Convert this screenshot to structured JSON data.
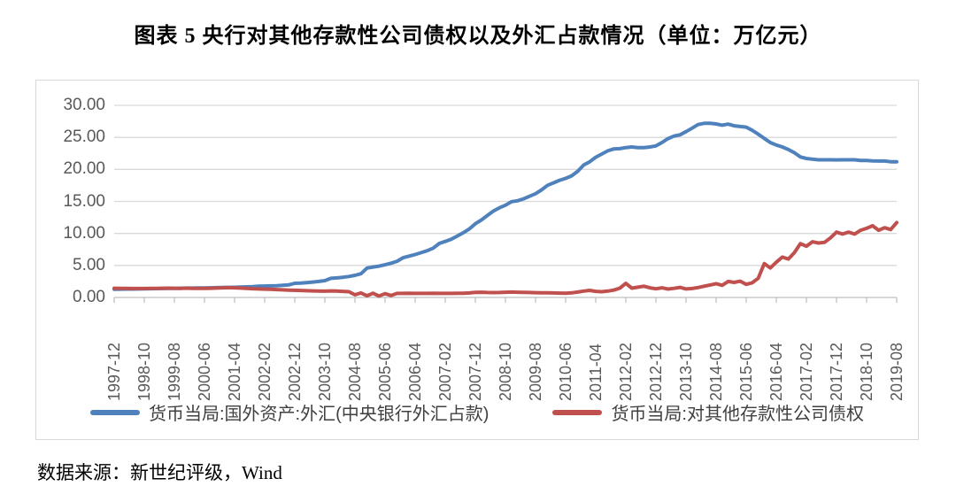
{
  "title": "图表 5  央行对其他存款性公司债权以及外汇占款情况（单位：万亿元）",
  "source": "数据来源：新世纪评级，Wind",
  "colors": {
    "series_fx_blue": "#4F81BD",
    "series_claims_red": "#C0504D",
    "gridline": "#d9d9d9",
    "axis": "#bfbfbf",
    "tick_label": "#595959",
    "legend_text": "#404040",
    "border": "#d9d9d9"
  },
  "chart_data": {
    "type": "line",
    "title": "央行对其他存款性公司债权以及外汇占款情况",
    "unit": "万亿元",
    "grid": true,
    "legend_position": "bottom",
    "ylim": [
      0,
      30
    ],
    "y_ticks": [
      "0.00",
      "5.00",
      "10.00",
      "15.00",
      "20.00",
      "25.00",
      "30.00"
    ],
    "x_start": "1997-12",
    "x_end": "2019-08",
    "x_total_months": 260,
    "x_tick_interval_months": 10,
    "x_ticks": [
      "1997-12",
      "1998-10",
      "1999-08",
      "2000-06",
      "2001-04",
      "2002-02",
      "2002-12",
      "2003-10",
      "2004-08",
      "2005-06",
      "2006-04",
      "2007-02",
      "2007-12",
      "2008-10",
      "2009-08",
      "2010-06",
      "2011-04",
      "2012-02",
      "2012-12",
      "2013-10",
      "2014-08",
      "2015-06",
      "2016-04",
      "2017-02",
      "2017-12",
      "2018-10",
      "2019-08"
    ],
    "sample_interval_months": 2,
    "series": [
      {
        "name": "货币当局:国外资产:外汇(中央银行外汇占款)",
        "color": "#4F81BD",
        "values": [
          1.28,
          1.3,
          1.31,
          1.32,
          1.33,
          1.35,
          1.37,
          1.38,
          1.39,
          1.41,
          1.42,
          1.44,
          1.46,
          1.47,
          1.48,
          1.49,
          1.51,
          1.53,
          1.56,
          1.57,
          1.59,
          1.62,
          1.66,
          1.7,
          1.77,
          1.79,
          1.81,
          1.84,
          1.89,
          1.96,
          2.21,
          2.25,
          2.32,
          2.4,
          2.5,
          2.62,
          2.98,
          3.05,
          3.15,
          3.28,
          3.45,
          3.7,
          4.59,
          4.75,
          4.9,
          5.1,
          5.35,
          5.65,
          6.21,
          6.45,
          6.7,
          7.0,
          7.3,
          7.7,
          8.44,
          8.75,
          9.1,
          9.6,
          10.1,
          10.7,
          11.52,
          12.1,
          12.8,
          13.5,
          14.0,
          14.4,
          14.96,
          15.1,
          15.4,
          15.8,
          16.2,
          16.8,
          17.52,
          17.9,
          18.3,
          18.6,
          19.0,
          19.7,
          20.68,
          21.2,
          21.9,
          22.4,
          22.9,
          23.2,
          23.24,
          23.4,
          23.5,
          23.4,
          23.4,
          23.5,
          23.67,
          24.2,
          24.8,
          25.2,
          25.4,
          25.9,
          26.43,
          27.0,
          27.2,
          27.2,
          27.1,
          26.9,
          27.07,
          26.8,
          26.7,
          26.6,
          26.1,
          25.5,
          24.85,
          24.2,
          23.8,
          23.5,
          23.1,
          22.6,
          21.94,
          21.7,
          21.6,
          21.5,
          21.5,
          21.5,
          21.48,
          21.5,
          21.5,
          21.5,
          21.4,
          21.4,
          21.33,
          21.3,
          21.3,
          21.2,
          21.2
        ]
      },
      {
        "name": "货币当局:对其他存款性公司债权",
        "color": "#C0504D",
        "values": [
          1.44,
          1.43,
          1.41,
          1.4,
          1.39,
          1.4,
          1.42,
          1.43,
          1.44,
          1.45,
          1.44,
          1.43,
          1.45,
          1.42,
          1.41,
          1.42,
          1.44,
          1.47,
          1.5,
          1.54,
          1.5,
          1.46,
          1.41,
          1.37,
          1.33,
          1.3,
          1.27,
          1.23,
          1.19,
          1.15,
          1.12,
          1.09,
          1.05,
          1.02,
          1.0,
          0.98,
          1.02,
          0.99,
          0.96,
          0.9,
          0.42,
          0.7,
          0.26,
          0.66,
          0.22,
          0.6,
          0.3,
          0.64,
          0.63,
          0.65,
          0.64,
          0.63,
          0.64,
          0.65,
          0.64,
          0.64,
          0.63,
          0.65,
          0.67,
          0.7,
          0.79,
          0.81,
          0.78,
          0.76,
          0.78,
          0.81,
          0.84,
          0.82,
          0.79,
          0.77,
          0.75,
          0.73,
          0.72,
          0.7,
          0.68,
          0.67,
          0.72,
          0.85,
          1.0,
          1.1,
          0.95,
          0.9,
          1.0,
          1.15,
          1.45,
          2.2,
          1.45,
          1.6,
          1.75,
          1.5,
          1.35,
          1.5,
          1.32,
          1.42,
          1.57,
          1.33,
          1.4,
          1.55,
          1.75,
          1.95,
          2.15,
          1.9,
          2.5,
          2.35,
          2.55,
          2.05,
          2.3,
          3.0,
          5.3,
          4.6,
          5.5,
          6.3,
          6.0,
          7.0,
          8.4,
          8.0,
          8.7,
          8.5,
          8.6,
          9.3,
          10.2,
          9.9,
          10.2,
          9.9,
          10.5,
          10.8,
          11.2,
          10.5,
          10.9,
          10.6,
          11.7
        ]
      }
    ]
  },
  "legend": [
    {
      "label": "货币当局:国外资产:外汇(中央银行外汇占款)",
      "color": "#4F81BD"
    },
    {
      "label": "货币当局:对其他存款性公司债权",
      "color": "#C0504D"
    }
  ]
}
